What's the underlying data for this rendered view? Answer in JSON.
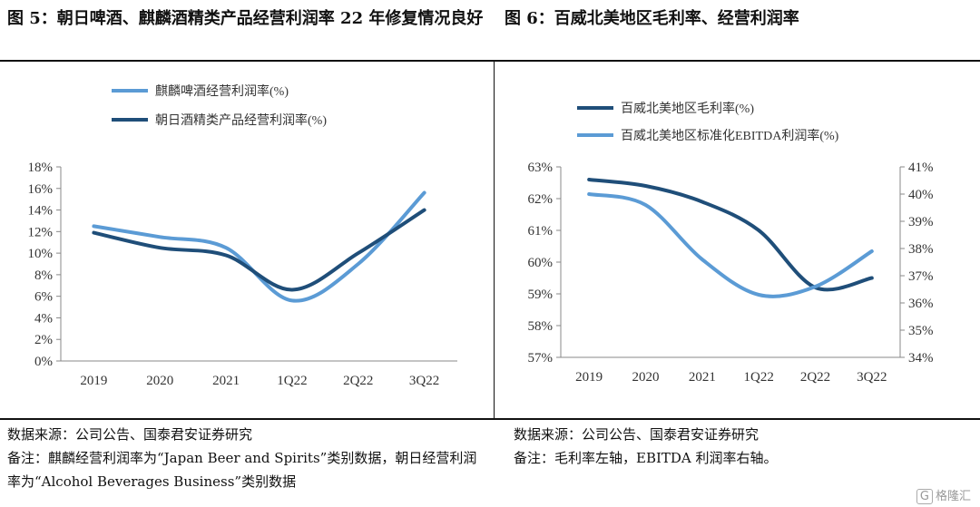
{
  "fig5": {
    "title": "图 5：朝日啤酒、麒麟酒精类产品经营利润率 22 年修复情况良好",
    "source": "数据来源：公司公告、国泰君安证券研究",
    "note": "备注：麒麟经营利润率为“Japan Beer and Spirits”类别数据，朝日经营利润率为“Alcohol Beverages Business”类别数据"
  },
  "fig6": {
    "title": "图 6：百威北美地区毛利率、经营利润率",
    "source": "数据来源：公司公告、国泰君安证券研究",
    "note": "备注：毛利率左轴，EBITDA 利润率右轴。"
  },
  "watermark": "格隆汇",
  "chart_data": [
    {
      "type": "line",
      "categories": [
        "2019",
        "2020",
        "2021",
        "1Q22",
        "2Q22",
        "3Q22"
      ],
      "y_ticks": [
        "0%",
        "2%",
        "4%",
        "6%",
        "8%",
        "10%",
        "12%",
        "14%",
        "16%",
        "18%"
      ],
      "ylim": [
        0,
        18
      ],
      "grid": false,
      "legend_position": "top-left",
      "series": [
        {
          "name": "麒麟啤酒经营利润率(%)",
          "color": "#5b9bd5",
          "values": [
            12.5,
            11.5,
            10.5,
            5.6,
            9.0,
            15.6
          ]
        },
        {
          "name": "朝日酒精类产品经营利润率(%)",
          "color": "#1f4e79",
          "values": [
            11.9,
            10.5,
            9.8,
            6.6,
            10.0,
            14.0
          ]
        }
      ]
    },
    {
      "type": "line",
      "categories": [
        "2019",
        "2020",
        "2021",
        "1Q22",
        "2Q22",
        "3Q22"
      ],
      "y_ticks_left": [
        "57%",
        "58%",
        "59%",
        "60%",
        "61%",
        "62%",
        "63%"
      ],
      "y_ticks_right": [
        "34%",
        "35%",
        "36%",
        "37%",
        "38%",
        "39%",
        "40%",
        "41%"
      ],
      "ylim_left": [
        57,
        63
      ],
      "ylim_right": [
        34,
        41
      ],
      "grid": false,
      "legend_position": "top-left",
      "series": [
        {
          "name": "百威北美地区毛利率(%)",
          "color": "#1f4e79",
          "axis": "left",
          "values": [
            62.6,
            62.4,
            61.9,
            61.0,
            59.2,
            59.5
          ]
        },
        {
          "name": "百威北美地区标准化EBITDA利润率(%)",
          "color": "#5b9bd5",
          "axis": "right",
          "values": [
            40.0,
            39.6,
            37.6,
            36.3,
            36.6,
            37.9
          ]
        }
      ]
    }
  ]
}
